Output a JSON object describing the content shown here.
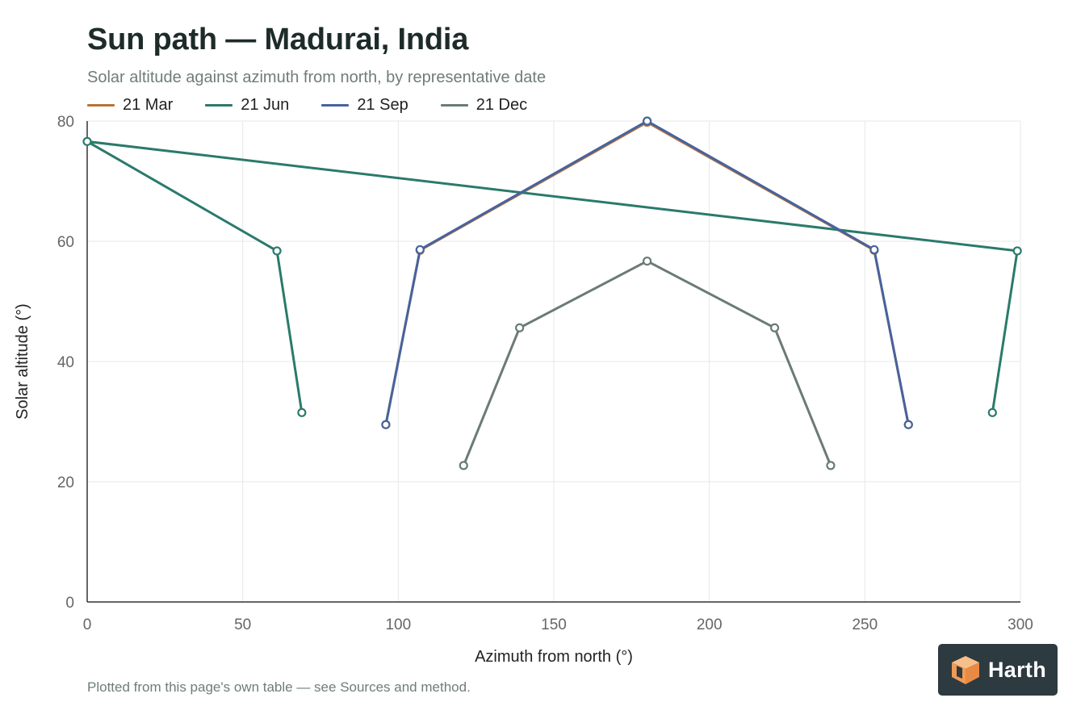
{
  "page": {
    "title": "Sun path — Madurai, India",
    "subtitle": "Solar altitude against azimuth from north, by representative date",
    "footnote": "Plotted from this page's own table — see Sources and method.",
    "brand": "Harth"
  },
  "colors": {
    "mar": "#b87333",
    "jun": "#2a7a6c",
    "sep": "#47639e",
    "dec": "#6b7b77",
    "grid": "#e6e8e8",
    "axis": "#333333",
    "tick_text": "#666666"
  },
  "chart_data": {
    "type": "line",
    "title": "Sun path — Madurai, India",
    "subtitle": "Solar altitude against azimuth from north, by representative date",
    "xlabel": "Azimuth from north (°)",
    "ylabel": "Solar altitude (°)",
    "xlim": [
      0,
      300
    ],
    "ylim": [
      0,
      80
    ],
    "xticks": [
      "0",
      "50",
      "100",
      "150",
      "200",
      "250",
      "300"
    ],
    "yticks": [
      "0",
      "20",
      "40",
      "60",
      "80"
    ],
    "grid": true,
    "legend_position": "top-left",
    "series": [
      {
        "name": "21 Mar",
        "color_key": "mar",
        "x": [
          96,
          107,
          180,
          253,
          264
        ],
        "y": [
          29.5,
          58.5,
          79.8,
          58.5,
          29.5
        ]
      },
      {
        "name": "21 Jun",
        "color_key": "jun",
        "x": [
          69,
          61,
          0,
          299,
          291
        ],
        "y": [
          31.5,
          58.4,
          76.6,
          58.4,
          31.5
        ]
      },
      {
        "name": "21 Sep",
        "color_key": "sep",
        "x": [
          96,
          107,
          180,
          253,
          264
        ],
        "y": [
          29.5,
          58.6,
          80.0,
          58.6,
          29.5
        ]
      },
      {
        "name": "21 Dec",
        "color_key": "dec",
        "x": [
          121,
          139,
          180,
          221,
          239
        ],
        "y": [
          22.7,
          45.6,
          56.7,
          45.6,
          22.7
        ]
      }
    ]
  }
}
